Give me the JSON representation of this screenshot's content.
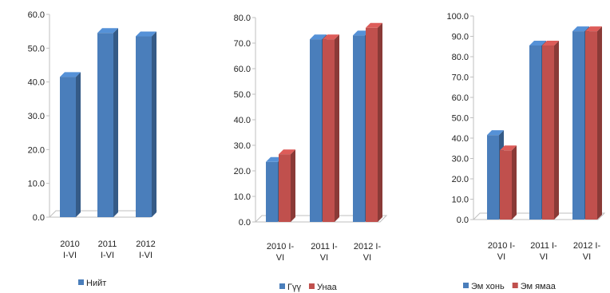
{
  "chart_data": [
    {
      "type": "bar",
      "categories": [
        "2010 I-VI",
        "2011 I-VI",
        "2012 I-VI"
      ],
      "category_lines": [
        [
          "2010",
          "I-VI"
        ],
        [
          "2011",
          "I-VI"
        ],
        [
          "2012",
          "I-VI"
        ]
      ],
      "series": [
        {
          "name": "Нийт",
          "color": "#4a7ebb",
          "values": [
            41.5,
            54.5,
            53.5
          ]
        }
      ],
      "ylim": [
        0,
        60
      ],
      "yticks": [
        "0.0",
        "10.0",
        "20.0",
        "30.0",
        "40.0",
        "50.0",
        "60.0"
      ],
      "grid": false,
      "legend": "bottom",
      "title": "",
      "xlabel": "",
      "ylabel": ""
    },
    {
      "type": "bar",
      "categories": [
        "2010 I-VI",
        "2011 I-VI",
        "2012 I-VI"
      ],
      "category_lines": [
        [
          "2010 I-",
          "VI"
        ],
        [
          "2011 I-",
          "VI"
        ],
        [
          "2012 I-",
          "VI"
        ]
      ],
      "series": [
        {
          "name": "Гүү",
          "color": "#4a7ebb",
          "values": [
            23.5,
            71.5,
            73
          ]
        },
        {
          "name": "Унаа",
          "color": "#c0504d",
          "values": [
            26.5,
            71.5,
            76
          ]
        }
      ],
      "ylim": [
        0,
        80
      ],
      "yticks": [
        "0.0",
        "10.0",
        "20.0",
        "30.0",
        "40.0",
        "50.0",
        "60.0",
        "70.0",
        "80.0"
      ],
      "grid": false,
      "legend": "bottom",
      "title": "",
      "xlabel": "",
      "ylabel": ""
    },
    {
      "type": "bar",
      "categories": [
        "2010 I-VI",
        "2011 I-VI",
        "2012 I-VI"
      ],
      "category_lines": [
        [
          "2010 I-",
          "VI"
        ],
        [
          "2011 I-",
          "VI"
        ],
        [
          "2012 I-",
          "VI"
        ]
      ],
      "series": [
        {
          "name": "Эм хонь",
          "color": "#4a7ebb",
          "values": [
            41.5,
            85.5,
            92.5
          ]
        },
        {
          "name": "Эм ямаа",
          "color": "#c0504d",
          "values": [
            34,
            85.5,
            92.5
          ]
        }
      ],
      "ylim": [
        0,
        100
      ],
      "yticks": [
        "0.0",
        "10.0",
        "20.0",
        "30.0",
        "40.0",
        "50.0",
        "60.0",
        "70.0",
        "80.0",
        "90.0",
        "100.0"
      ],
      "grid": false,
      "legend": "bottom",
      "title": "",
      "xlabel": "",
      "ylabel": ""
    }
  ]
}
